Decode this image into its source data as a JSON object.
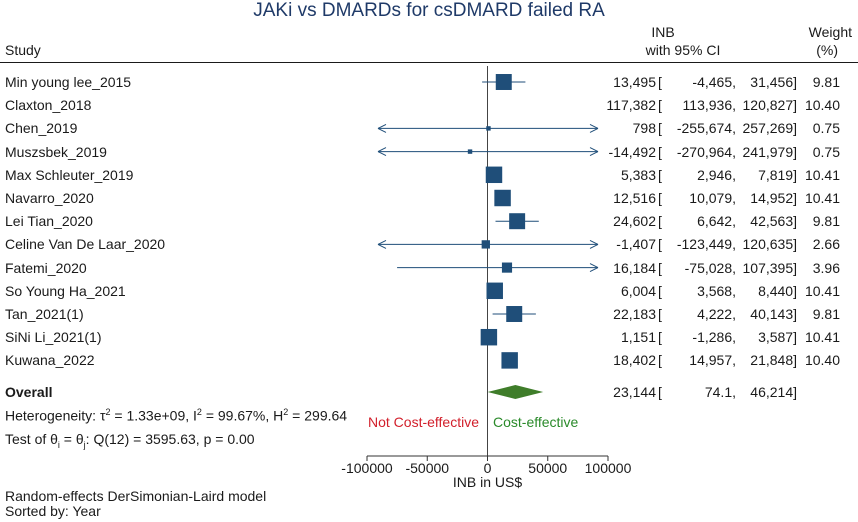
{
  "chart_data": {
    "type": "forest",
    "title": "JAKi vs DMARDs for csDMARD failed RA",
    "header": {
      "study": "Study",
      "inb_line1": "INB",
      "inb_line2": "with 95% CI",
      "weight_line1": "Weight",
      "weight_line2": "(%)"
    },
    "xlabel": "INB in US$",
    "xlim": [
      -100000,
      100000
    ],
    "ticks": [
      -100000,
      -50000,
      0,
      50000,
      100000
    ],
    "tick_labels": [
      "-100000",
      "-50000",
      "0",
      "50000",
      "100000"
    ],
    "studies": [
      {
        "name": "Min young lee_2015",
        "est": 13495,
        "lo": -4465,
        "hi": 31456,
        "est_text": "13,495",
        "lo_text": "-4,465,",
        "hi_text": "31,456]",
        "weight": 9.81,
        "weight_text": "9.81"
      },
      {
        "name": "Claxton_2018",
        "est": 117382,
        "lo": 113936,
        "hi": 120827,
        "est_text": "117,382",
        "lo_text": "113,936,",
        "hi_text": "120,827]",
        "weight": 10.4,
        "weight_text": "10.40"
      },
      {
        "name": "Chen_2019",
        "est": 798,
        "lo": -255674,
        "hi": 257269,
        "est_text": "798",
        "lo_text": "-255,674,",
        "hi_text": "257,269]",
        "weight": 0.75,
        "weight_text": "0.75"
      },
      {
        "name": "Muszsbek_2019",
        "est": -14492,
        "lo": -270964,
        "hi": 241979,
        "est_text": "-14,492",
        "lo_text": "-270,964,",
        "hi_text": "241,979]",
        "weight": 0.75,
        "weight_text": "0.75"
      },
      {
        "name": "Max Schleuter_2019",
        "est": 5383,
        "lo": 2946,
        "hi": 7819,
        "est_text": "5,383",
        "lo_text": "2,946,",
        "hi_text": "7,819]",
        "weight": 10.41,
        "weight_text": "10.41"
      },
      {
        "name": "Navarro_2020",
        "est": 12516,
        "lo": 10079,
        "hi": 14952,
        "est_text": "12,516",
        "lo_text": "10,079,",
        "hi_text": "14,952]",
        "weight": 10.41,
        "weight_text": "10.41"
      },
      {
        "name": "Lei Tian_2020",
        "est": 24602,
        "lo": 6642,
        "hi": 42563,
        "est_text": "24,602",
        "lo_text": "6,642,",
        "hi_text": "42,563]",
        "weight": 9.81,
        "weight_text": "9.81"
      },
      {
        "name": "Celine Van De Laar_2020",
        "est": -1407,
        "lo": -123449,
        "hi": 120635,
        "est_text": "-1,407",
        "lo_text": "-123,449,",
        "hi_text": "120,635]",
        "weight": 2.66,
        "weight_text": "2.66"
      },
      {
        "name": "Fatemi_2020",
        "est": 16184,
        "lo": -75028,
        "hi": 107395,
        "est_text": "16,184",
        "lo_text": "-75,028,",
        "hi_text": "107,395]",
        "weight": 3.96,
        "weight_text": "3.96"
      },
      {
        "name": "So Young Ha_2021",
        "est": 6004,
        "lo": 3568,
        "hi": 8440,
        "est_text": "6,004",
        "lo_text": "3,568,",
        "hi_text": "8,440]",
        "weight": 10.41,
        "weight_text": "10.41"
      },
      {
        "name": "Tan_2021(1)",
        "est": 22183,
        "lo": 4222,
        "hi": 40143,
        "est_text": "22,183",
        "lo_text": "4,222,",
        "hi_text": "40,143]",
        "weight": 9.81,
        "weight_text": "9.81"
      },
      {
        "name": "SiNi Li_2021(1)",
        "est": 1151,
        "lo": -1286,
        "hi": 3587,
        "est_text": "1,151",
        "lo_text": "-1,286,",
        "hi_text": "3,587]",
        "weight": 10.41,
        "weight_text": "10.41"
      },
      {
        "name": "Kuwana_2022",
        "est": 18402,
        "lo": 14957,
        "hi": 21848,
        "est_text": "18,402",
        "lo_text": "14,957,",
        "hi_text": "21,848]",
        "weight": 10.4,
        "weight_text": "10.40"
      }
    ],
    "overall": {
      "name": "Overall",
      "est": 23144,
      "lo": 74.1,
      "hi": 46214,
      "est_text": "23,144",
      "lo_text": "74.1,",
      "hi_text": "46,214]"
    },
    "bracket_open": "[",
    "heterogeneity": {
      "prefix": "Heterogeneity: ",
      "tau": "τ",
      "tau_exp": "2",
      "tau_val": " = 1.33e+09, ",
      "i": "I",
      "i_exp": "2",
      "i_val": " = 99.67%, ",
      "h": "H",
      "h_exp": "2",
      "h_val": " = 299.64"
    },
    "test": {
      "prefix": "Test of θ",
      "sub_i": "i",
      "eq": " = θ",
      "sub_j": "j",
      "rest": ": Q(12) = 3595.63, p = 0.00"
    },
    "not_cost_effective": "Not Cost-effective",
    "cost_effective": "Cost-effective",
    "footer_model": "Random-effects DerSimonian-Laird model",
    "footer_sorted": "Sorted by: Year",
    "colors": {
      "marker": "#1f4e79",
      "diamond": "#3f7d2a",
      "not_ce": "#d21f2b",
      "ce": "#2a8a2a"
    }
  }
}
